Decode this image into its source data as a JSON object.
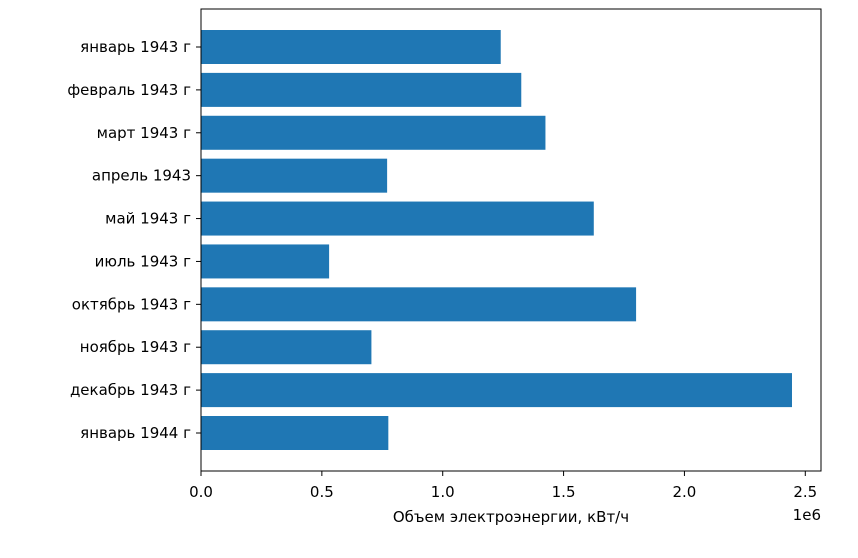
{
  "chart_data": {
    "type": "bar",
    "orientation": "horizontal",
    "categories": [
      "январь 1943 г",
      "февраль 1943 г",
      "март 1943 г",
      "апрель 1943",
      "май 1943 г",
      "июль 1943 г",
      "октябрь 1943 г",
      "ноябрь 1943 г",
      "декабрь 1943 г",
      "январь 1944 г"
    ],
    "values": [
      1240000,
      1325000,
      1425000,
      770000,
      1625000,
      530000,
      1800000,
      705000,
      2445000,
      775000
    ],
    "xlabel": "Объем электроэнергии, кВт/ч",
    "ylabel": "",
    "xlim": [
      0,
      2565000
    ],
    "xticks": [
      0,
      500000,
      1000000,
      1500000,
      2000000,
      2500000
    ],
    "xtick_labels": [
      "0.0",
      "0.5",
      "1.0",
      "1.5",
      "2.0",
      "2.5"
    ],
    "x_offset_label": "1e6",
    "bar_color": "#1f77b4",
    "grid": false,
    "legend": "none"
  }
}
